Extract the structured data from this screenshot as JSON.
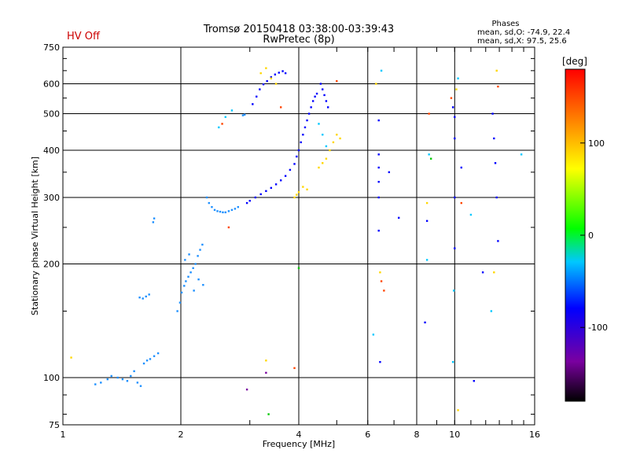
{
  "header": {
    "status": "HV Off",
    "status_color": "#cc0000",
    "title_line1": "Tromsø 20150418 03:38:00-03:39:43",
    "title_line2": "RwPretec (8p)",
    "phase_heading": "Phases",
    "phase_line1": "mean, sd,O: -74.9, 22.4",
    "phase_line2": "mean, sd,X:  97.5, 25.6"
  },
  "chart_data": {
    "type": "scatter",
    "xlabel": "Frequency [MHz]",
    "ylabel": "Stationary phase Virtual Height [km]",
    "x_scale": "log",
    "y_scale": "log",
    "xlim": [
      1,
      16
    ],
    "ylim": [
      75,
      750
    ],
    "x_ticks": [
      1,
      2,
      4,
      6,
      8,
      10,
      16
    ],
    "y_ticks": [
      75,
      100,
      200,
      300,
      400,
      500,
      600,
      750
    ],
    "grid": true,
    "colorbar": {
      "label": "[deg]",
      "range": [
        -180,
        180
      ],
      "ticks": [
        100,
        0,
        -100
      ],
      "colors": [
        "#000000",
        "#7a00a0",
        "#0000ff",
        "#00c8ff",
        "#00ff00",
        "#ffff00",
        "#ff8000",
        "#ff0000"
      ]
    },
    "series": [
      {
        "color": "#1e90ff",
        "points": [
          [
            1.21,
            96
          ],
          [
            1.25,
            97
          ],
          [
            1.3,
            99
          ],
          [
            1.33,
            101
          ],
          [
            1.38,
            100
          ],
          [
            1.42,
            99
          ],
          [
            1.46,
            98
          ],
          [
            1.49,
            101
          ],
          [
            1.52,
            104
          ],
          [
            1.55,
            97
          ],
          [
            1.58,
            95
          ],
          [
            1.61,
            109
          ],
          [
            1.64,
            111
          ],
          [
            1.67,
            112
          ],
          [
            1.71,
            114
          ],
          [
            1.75,
            116
          ],
          [
            1.57,
            163
          ],
          [
            1.6,
            162
          ],
          [
            1.63,
            164
          ],
          [
            1.66,
            166
          ],
          [
            1.7,
            258
          ],
          [
            1.71,
            264
          ],
          [
            1.96,
            150
          ],
          [
            1.99,
            158
          ],
          [
            2.01,
            168
          ],
          [
            2.04,
            175
          ],
          [
            2.06,
            180
          ],
          [
            2.09,
            185
          ],
          [
            2.12,
            190
          ],
          [
            2.15,
            195
          ],
          [
            2.18,
            200
          ],
          [
            2.21,
            210
          ],
          [
            2.24,
            218
          ],
          [
            2.27,
            225
          ],
          [
            2.05,
            205
          ],
          [
            2.1,
            212
          ],
          [
            2.16,
            170
          ],
          [
            2.22,
            182
          ],
          [
            2.28,
            176
          ],
          [
            2.33,
            300
          ],
          [
            2.36,
            290
          ],
          [
            2.4,
            283
          ],
          [
            2.44,
            278
          ],
          [
            2.48,
            276
          ],
          [
            2.52,
            275
          ],
          [
            2.56,
            274
          ],
          [
            2.6,
            274
          ],
          [
            2.65,
            276
          ],
          [
            2.7,
            278
          ],
          [
            2.75,
            280
          ],
          [
            2.8,
            283
          ],
          [
            2.88,
            495
          ],
          [
            2.91,
            497
          ]
        ]
      },
      {
        "color": "#0000ff",
        "points": [
          [
            2.95,
            290
          ],
          [
            3.0,
            294
          ],
          [
            3.1,
            300
          ],
          [
            3.2,
            306
          ],
          [
            3.3,
            312
          ],
          [
            3.4,
            318
          ],
          [
            3.5,
            325
          ],
          [
            3.6,
            333
          ],
          [
            3.7,
            342
          ],
          [
            3.8,
            355
          ],
          [
            3.9,
            368
          ],
          [
            3.95,
            385
          ],
          [
            4.0,
            400
          ],
          [
            4.05,
            420
          ],
          [
            4.1,
            440
          ],
          [
            4.15,
            460
          ],
          [
            4.2,
            480
          ],
          [
            4.25,
            500
          ],
          [
            4.3,
            520
          ],
          [
            4.35,
            540
          ],
          [
            4.4,
            555
          ],
          [
            4.45,
            565
          ],
          [
            3.05,
            530
          ],
          [
            3.12,
            555
          ],
          [
            3.18,
            580
          ],
          [
            3.25,
            598
          ],
          [
            3.32,
            610
          ],
          [
            3.4,
            625
          ],
          [
            3.48,
            635
          ],
          [
            3.56,
            642
          ],
          [
            3.64,
            648
          ],
          [
            3.7,
            640
          ],
          [
            4.55,
            600
          ],
          [
            4.6,
            580
          ],
          [
            4.65,
            560
          ],
          [
            4.7,
            540
          ],
          [
            4.75,
            520
          ],
          [
            6.4,
            480
          ],
          [
            6.4,
            390
          ],
          [
            6.4,
            360
          ],
          [
            6.4,
            330
          ],
          [
            6.4,
            300
          ],
          [
            6.4,
            245
          ],
          [
            6.45,
            110
          ],
          [
            6.8,
            350
          ],
          [
            7.2,
            265
          ],
          [
            8.4,
            140
          ],
          [
            8.5,
            260
          ],
          [
            9.9,
            520
          ],
          [
            10.0,
            490
          ],
          [
            10.0,
            430
          ],
          [
            10.0,
            300
          ],
          [
            10.0,
            220
          ],
          [
            10.4,
            360
          ],
          [
            11.2,
            98
          ],
          [
            11.8,
            190
          ],
          [
            12.5,
            500
          ],
          [
            12.6,
            430
          ],
          [
            12.7,
            370
          ],
          [
            12.8,
            300
          ],
          [
            12.9,
            230
          ]
        ]
      },
      {
        "color": "#00c8ff",
        "points": [
          [
            2.5,
            460
          ],
          [
            2.6,
            490
          ],
          [
            2.7,
            510
          ],
          [
            4.5,
            470
          ],
          [
            4.6,
            440
          ],
          [
            4.7,
            410
          ],
          [
            6.2,
            130
          ],
          [
            6.5,
            650
          ],
          [
            8.5,
            205
          ],
          [
            8.6,
            390
          ],
          [
            9.9,
            110
          ],
          [
            9.95,
            170
          ],
          [
            10.2,
            620
          ],
          [
            11.0,
            270
          ],
          [
            12.4,
            150
          ],
          [
            14.8,
            390
          ]
        ]
      },
      {
        "color": "#ffd700",
        "points": [
          [
            3.9,
            300
          ],
          [
            3.95,
            305
          ],
          [
            4.0,
            310
          ],
          [
            4.1,
            320
          ],
          [
            4.2,
            315
          ],
          [
            4.5,
            360
          ],
          [
            4.6,
            370
          ],
          [
            4.7,
            380
          ],
          [
            4.8,
            400
          ],
          [
            4.9,
            420
          ],
          [
            5.0,
            440
          ],
          [
            5.1,
            430
          ],
          [
            3.2,
            640
          ],
          [
            3.3,
            660
          ],
          [
            3.4,
            620
          ],
          [
            3.5,
            600
          ],
          [
            1.05,
            113
          ],
          [
            3.3,
            111
          ],
          [
            6.3,
            600
          ],
          [
            6.45,
            190
          ],
          [
            8.5,
            290
          ],
          [
            10.1,
            580
          ],
          [
            10.2,
            82
          ],
          [
            12.8,
            650
          ],
          [
            12.6,
            190
          ]
        ]
      },
      {
        "color": "#ff4500",
        "points": [
          [
            2.55,
            470
          ],
          [
            2.65,
            250
          ],
          [
            3.6,
            520
          ],
          [
            3.9,
            106
          ],
          [
            5.0,
            610
          ],
          [
            6.5,
            180
          ],
          [
            6.6,
            170
          ],
          [
            8.6,
            500
          ],
          [
            9.8,
            550
          ],
          [
            10.4,
            290
          ],
          [
            12.9,
            590
          ]
        ]
      },
      {
        "color": "#00c800",
        "points": [
          [
            3.35,
            80
          ],
          [
            4.0,
            195
          ],
          [
            8.7,
            380
          ]
        ]
      },
      {
        "color": "#7a00a0",
        "points": [
          [
            2.95,
            93
          ],
          [
            3.3,
            103
          ]
        ]
      }
    ]
  }
}
